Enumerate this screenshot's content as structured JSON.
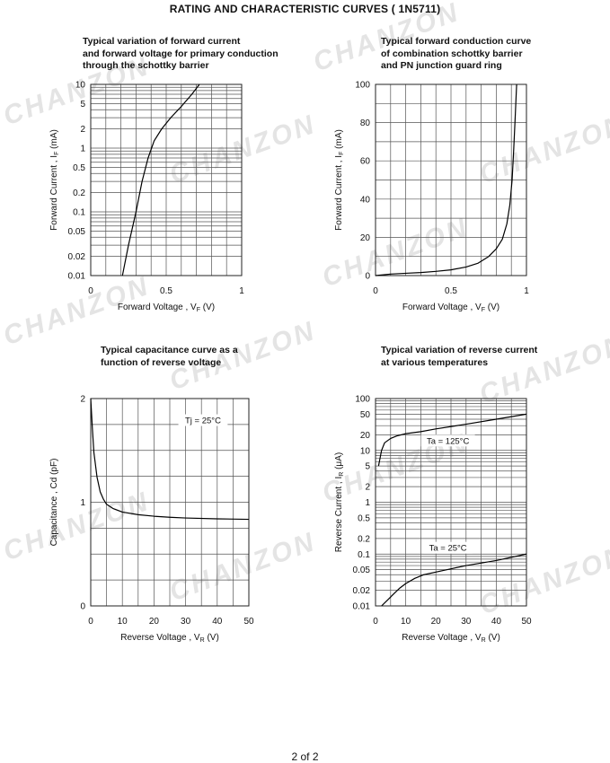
{
  "page": {
    "title": "RATING AND CHARACTERISTIC CURVES  ( 1N5711)",
    "footer": "2  of 2",
    "watermark": "CHANZON",
    "colors": {
      "grid": "#555555",
      "curve": "#000000",
      "watermark": "#e4e4e4"
    }
  },
  "chart_data": [
    {
      "type": "line",
      "title_lines": [
        "Typical variation of forward current",
        "and forward voltage for primary conduction",
        "through the schottky barrier"
      ],
      "xlabel": "Forward Voltage , V",
      "xlabel_sub": "F",
      "xlabel_unit": " (V)",
      "ylabel": "Forward Current , I",
      "ylabel_sub": "F",
      "ylabel_unit": " (mA)",
      "xscale": "linear",
      "yscale": "log",
      "xlim": [
        0,
        1
      ],
      "ylim": [
        0.01,
        10
      ],
      "xticks": [
        0,
        0.5,
        1
      ],
      "xtick_labels": [
        "0",
        "0.5",
        "1"
      ],
      "yticks": [
        0.01,
        0.02,
        0.05,
        0.1,
        0.2,
        0.5,
        1,
        2,
        5,
        10
      ],
      "ytick_labels": [
        "0.01",
        "0.02",
        "0.05",
        "0.1",
        "0.2",
        "0.5",
        "1",
        "2",
        "5",
        "10"
      ],
      "grid": true,
      "annotations": [],
      "series": [
        {
          "x": [
            0.21,
            0.25,
            0.3,
            0.34,
            0.38,
            0.42,
            0.47,
            0.53,
            0.6,
            0.67,
            0.72
          ],
          "y": [
            0.01,
            0.03,
            0.1,
            0.3,
            0.7,
            1.3,
            2.0,
            3.0,
            4.5,
            7.0,
            10
          ]
        }
      ]
    },
    {
      "type": "line",
      "title_lines": [
        "Typical forward conduction curve",
        "of combination schottky barrier",
        "and PN junction guard ring"
      ],
      "xlabel": "Forward Voltage , V",
      "xlabel_sub": "F",
      "xlabel_unit": " (V)",
      "ylabel": "Forward Current , I",
      "ylabel_sub": "F",
      "ylabel_unit": " (mA)",
      "xscale": "linear",
      "yscale": "linear",
      "xlim": [
        0,
        1
      ],
      "ylim": [
        0,
        100
      ],
      "xticks": [
        0,
        0.5,
        1
      ],
      "xtick_labels": [
        "0",
        "0.5",
        "1"
      ],
      "yticks": [
        0,
        20,
        40,
        60,
        80,
        100
      ],
      "ytick_labels": [
        "0",
        "20",
        "40",
        "60",
        "80",
        "100"
      ],
      "grid": true,
      "annotations": [],
      "series": [
        {
          "x": [
            0,
            0.1,
            0.2,
            0.3,
            0.4,
            0.5,
            0.6,
            0.68,
            0.75,
            0.8,
            0.84,
            0.87,
            0.89,
            0.905,
            0.915,
            0.925,
            0.935
          ],
          "y": [
            0,
            0.8,
            1.2,
            1.6,
            2.2,
            3,
            4.5,
            6.5,
            10,
            14,
            19,
            27,
            37,
            50,
            65,
            82,
            100
          ]
        }
      ]
    },
    {
      "type": "line",
      "title_lines": [
        "Typical capacitance curve as a",
        "function of reverse voltage"
      ],
      "xlabel": "Reverse Voltage , V",
      "xlabel_sub": "R",
      "xlabel_unit": " (V)",
      "ylabel": "Capacitance , Cd (pF)",
      "ylabel_sub": "",
      "ylabel_unit": "",
      "xscale": "linear",
      "yscale": "linear",
      "xlim": [
        0,
        50
      ],
      "ylim": [
        0,
        2
      ],
      "xticks": [
        0,
        10,
        20,
        30,
        40,
        50
      ],
      "xtick_labels": [
        "0",
        "10",
        "20",
        "30",
        "40",
        "50"
      ],
      "yticks": [
        0,
        1,
        2
      ],
      "ytick_labels": [
        "0",
        "1",
        "2"
      ],
      "grid": true,
      "grid_y": [
        0,
        0.25,
        0.5,
        0.75,
        1,
        1.25,
        1.5,
        1.75,
        2
      ],
      "grid_x": [
        0,
        5,
        10,
        15,
        20,
        25,
        30,
        35,
        40,
        45,
        50
      ],
      "annotations": [
        {
          "text": "Tj = 25°C",
          "x": 35.5,
          "y": 1.77
        }
      ],
      "series": [
        {
          "x": [
            0,
            0.5,
            1,
            2,
            3,
            4,
            5,
            7,
            10,
            15,
            20,
            25,
            30,
            40,
            50
          ],
          "y": [
            2.0,
            1.72,
            1.48,
            1.24,
            1.1,
            1.03,
            0.98,
            0.94,
            0.905,
            0.88,
            0.865,
            0.855,
            0.848,
            0.84,
            0.835
          ]
        }
      ]
    },
    {
      "type": "line",
      "title_lines": [
        "Typical variation of reverse current",
        "at various temperatures"
      ],
      "xlabel": "Reverse Voltage , V",
      "xlabel_sub": "R",
      "xlabel_unit": " (V)",
      "ylabel": "Reverse Current , I",
      "ylabel_sub": "R",
      "ylabel_unit": " (μA)",
      "xscale": "linear",
      "yscale": "log",
      "xlim": [
        0,
        50
      ],
      "ylim": [
        0.01,
        100
      ],
      "xticks": [
        0,
        10,
        20,
        30,
        40,
        50
      ],
      "xtick_labels": [
        "0",
        "10",
        "20",
        "30",
        "40",
        "50"
      ],
      "yticks": [
        0.01,
        0.02,
        0.05,
        0.1,
        0.2,
        0.5,
        1,
        2,
        5,
        10,
        20,
        50,
        100
      ],
      "ytick_labels": [
        "0.01",
        "0.02",
        "0.05",
        "0.1",
        "0.2",
        "0.5",
        "1",
        "2",
        "5",
        "10",
        "20",
        "50",
        "100"
      ],
      "grid": true,
      "annotations": [
        {
          "text": "Ta = 125°C",
          "x": 24,
          "y": 14
        },
        {
          "text": "Ta = 25°C",
          "x": 24,
          "y": 0.12
        }
      ],
      "series": [
        {
          "name": "Ta = 125°C",
          "x": [
            1,
            2,
            3,
            5,
            7,
            10,
            15,
            20,
            30,
            40,
            50
          ],
          "y": [
            5,
            10,
            14,
            17,
            19,
            21,
            23,
            26,
            32,
            40,
            50
          ]
        },
        {
          "name": "Ta = 25°C",
          "x": [
            2,
            4,
            6,
            8,
            10,
            13,
            16,
            20,
            25,
            30,
            40,
            50
          ],
          "y": [
            0.01,
            0.013,
            0.017,
            0.022,
            0.027,
            0.034,
            0.04,
            0.045,
            0.052,
            0.06,
            0.075,
            0.1
          ]
        }
      ]
    }
  ]
}
